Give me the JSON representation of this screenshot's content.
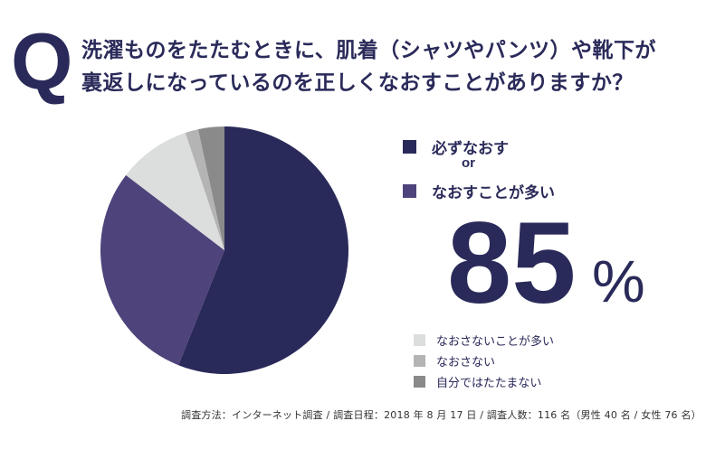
{
  "question_mark": "Q",
  "title_lines": [
    "洗濯ものをたたむときに、肌着（シャツやパンツ）や靴下が",
    "裏返しになっているのを正しくなおすことがありますか？"
  ],
  "highlight": {
    "value": "85",
    "unit": "%",
    "connector": "or"
  },
  "footer": "調査方法：インターネット調査 / 調査日程：2018 年 8 月 17 日 / 調査人数：116 名（男性 40 名 / 女性 76 名）",
  "chart_data": {
    "type": "pie",
    "start": "top",
    "direction": "clockwise",
    "legend_position": "right",
    "slices": [
      {
        "label": "必ずなおす",
        "value": 56.0,
        "color": "#2a2a5a"
      },
      {
        "label": "なおすことが多い",
        "value": 29.3,
        "color": "#4e437a"
      },
      {
        "label": "なおさないことが多い",
        "value": 9.5,
        "color": "#dcdddd"
      },
      {
        "label": "なおさない",
        "value": 1.7,
        "color": "#b4b4b5"
      },
      {
        "label": "自分ではたたまない",
        "value": 3.4,
        "color": "#8a8a8b"
      }
    ]
  }
}
